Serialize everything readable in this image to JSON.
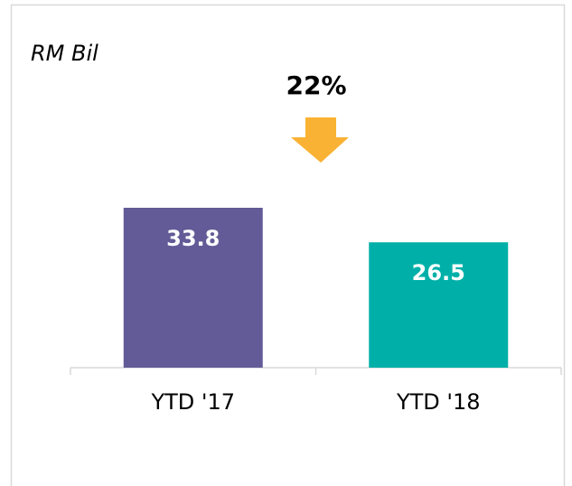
{
  "chart_data": {
    "type": "bar",
    "subtitle": "RM Bil",
    "annotation": "22%",
    "categories": [
      "YTD '17",
      "YTD '18"
    ],
    "values": [
      33.8,
      26.5
    ],
    "colors": [
      "#625b97",
      "#00b0a8"
    ],
    "arrow_color": "#f9b233"
  }
}
